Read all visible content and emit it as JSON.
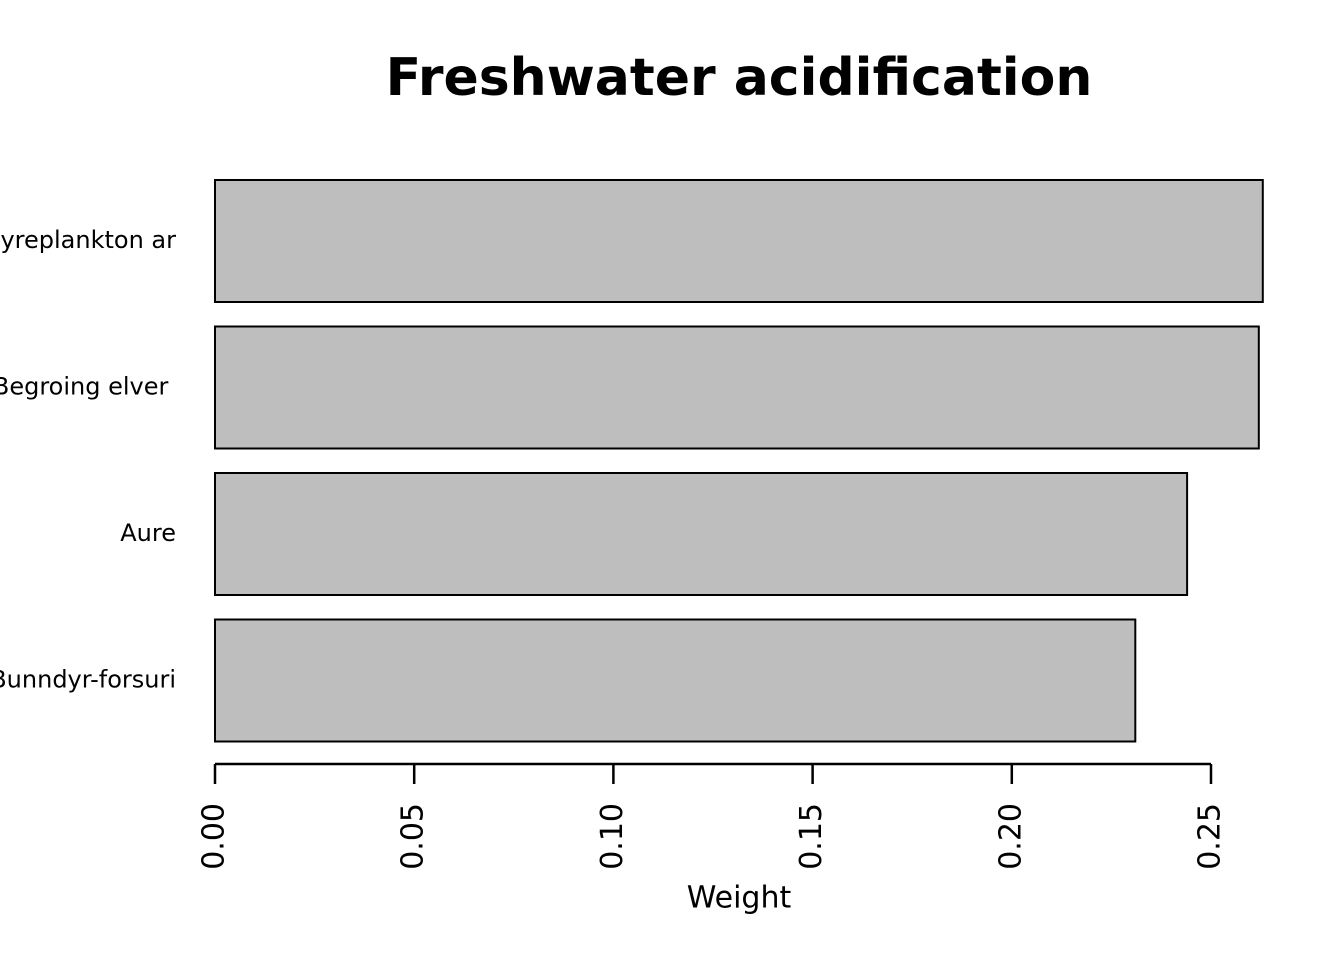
{
  "chart_data": {
    "type": "barh",
    "title": "Freshwater acidification",
    "xlabel": "Weight",
    "categories": [
      "Dyreplankton ar",
      "Begroing elver ",
      "Aure",
      "Bunndyr-forsuri"
    ],
    "values": [
      0.263,
      0.262,
      0.244,
      0.231
    ],
    "color": "#bebebe",
    "xlim": [
      0,
      0.25
    ],
    "xticks": [
      {
        "value": 0,
        "label": "0.00"
      },
      {
        "value": 0.05,
        "label": "0.05"
      },
      {
        "value": 0.1,
        "label": "0.10"
      },
      {
        "value": 0.15,
        "label": "0.15"
      },
      {
        "value": 0.2,
        "label": "0.20"
      },
      {
        "value": 0.25,
        "label": "0.25"
      }
    ],
    "grid": false
  }
}
